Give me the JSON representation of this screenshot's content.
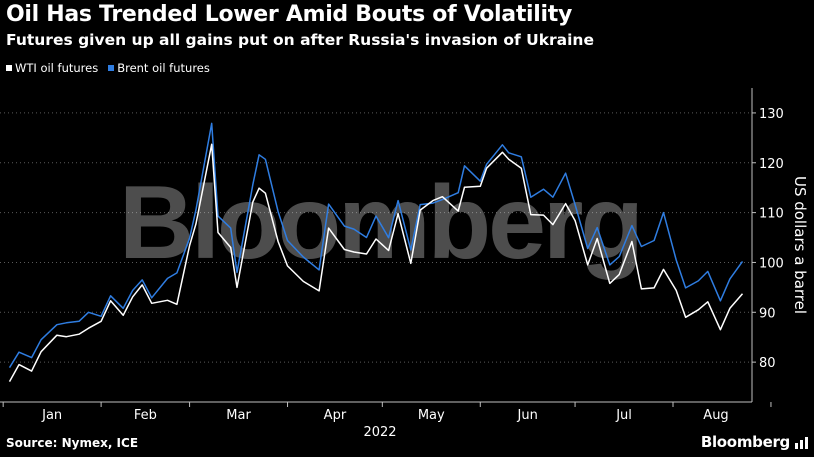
{
  "title": "Oil Has Trended Lower Amid Bouts of Volatility",
  "subtitle": "Futures given up all gains put on after Russia's invasion of Ukraine",
  "legend": [
    {
      "label": "WTI oil futures",
      "color": "#ffffff"
    },
    {
      "label": "Brent oil futures",
      "color": "#2f7de1"
    }
  ],
  "source": "Source: Nymex, ICE",
  "brand": "Bloomberg",
  "watermark": "Bloomberg",
  "chart_data": {
    "type": "line",
    "title": "Oil Has Trended Lower Amid Bouts of Volatility",
    "subtitle": "Futures given up all gains put on after Russia's invasion of Ukraine",
    "xlabel": "2022",
    "ylabel": "US dollars a barrel",
    "ylim": [
      72,
      135
    ],
    "yticks": [
      80,
      90,
      100,
      110,
      120,
      130
    ],
    "xtick_labels": [
      "Jan",
      "Feb",
      "Mar",
      "Apr",
      "May",
      "Jun",
      "Jul",
      "Aug"
    ],
    "grid": "horizontal dotted",
    "legend_position": "top-left",
    "series": [
      {
        "name": "WTI oil futures",
        "color": "#ffffff",
        "points": [
          [
            "2022-01-03",
            76.1
          ],
          [
            "2022-01-06",
            79.5
          ],
          [
            "2022-01-10",
            78.2
          ],
          [
            "2022-01-13",
            82.1
          ],
          [
            "2022-01-18",
            85.4
          ],
          [
            "2022-01-21",
            85.1
          ],
          [
            "2022-01-25",
            85.6
          ],
          [
            "2022-01-28",
            86.8
          ],
          [
            "2022-02-01",
            88.2
          ],
          [
            "2022-02-04",
            92.3
          ],
          [
            "2022-02-08",
            89.4
          ],
          [
            "2022-02-11",
            93.1
          ],
          [
            "2022-02-14",
            95.5
          ],
          [
            "2022-02-17",
            91.8
          ],
          [
            "2022-02-22",
            92.4
          ],
          [
            "2022-02-25",
            91.6
          ],
          [
            "2022-03-01",
            103.4
          ],
          [
            "2022-03-03",
            107.7
          ],
          [
            "2022-03-08",
            123.7
          ],
          [
            "2022-03-10",
            106.0
          ],
          [
            "2022-03-14",
            103.0
          ],
          [
            "2022-03-16",
            95.0
          ],
          [
            "2022-03-21",
            112.1
          ],
          [
            "2022-03-23",
            114.9
          ],
          [
            "2022-03-25",
            113.9
          ],
          [
            "2022-03-29",
            104.2
          ],
          [
            "2022-04-01",
            99.3
          ],
          [
            "2022-04-06",
            96.2
          ],
          [
            "2022-04-11",
            94.3
          ],
          [
            "2022-04-14",
            106.9
          ],
          [
            "2022-04-19",
            102.6
          ],
          [
            "2022-04-22",
            102.1
          ],
          [
            "2022-04-26",
            101.7
          ],
          [
            "2022-04-29",
            104.7
          ],
          [
            "2022-05-03",
            102.4
          ],
          [
            "2022-05-06",
            109.8
          ],
          [
            "2022-05-10",
            99.8
          ],
          [
            "2022-05-13",
            110.5
          ],
          [
            "2022-05-17",
            112.4
          ],
          [
            "2022-05-20",
            113.2
          ],
          [
            "2022-05-25",
            110.3
          ],
          [
            "2022-05-27",
            115.1
          ],
          [
            "2022-06-01",
            115.3
          ],
          [
            "2022-06-03",
            118.9
          ],
          [
            "2022-06-08",
            122.1
          ],
          [
            "2022-06-10",
            120.7
          ],
          [
            "2022-06-14",
            118.9
          ],
          [
            "2022-06-17",
            109.6
          ],
          [
            "2022-06-21",
            109.5
          ],
          [
            "2022-06-24",
            107.6
          ],
          [
            "2022-06-28",
            111.8
          ],
          [
            "2022-07-01",
            108.4
          ],
          [
            "2022-07-05",
            99.5
          ],
          [
            "2022-07-08",
            104.8
          ],
          [
            "2022-07-12",
            95.8
          ],
          [
            "2022-07-15",
            97.6
          ],
          [
            "2022-07-19",
            104.2
          ],
          [
            "2022-07-22",
            94.7
          ],
          [
            "2022-07-26",
            94.9
          ],
          [
            "2022-07-29",
            98.6
          ],
          [
            "2022-08-02",
            94.4
          ],
          [
            "2022-08-05",
            89.0
          ],
          [
            "2022-08-09",
            90.5
          ],
          [
            "2022-08-12",
            92.1
          ],
          [
            "2022-08-16",
            86.5
          ],
          [
            "2022-08-19",
            90.8
          ],
          [
            "2022-08-23",
            93.7
          ]
        ]
      },
      {
        "name": "Brent oil futures",
        "color": "#2f7de1",
        "points": [
          [
            "2022-01-03",
            78.9
          ],
          [
            "2022-01-06",
            82.0
          ],
          [
            "2022-01-10",
            80.9
          ],
          [
            "2022-01-13",
            84.5
          ],
          [
            "2022-01-18",
            87.5
          ],
          [
            "2022-01-21",
            87.9
          ],
          [
            "2022-01-25",
            88.2
          ],
          [
            "2022-01-28",
            90.0
          ],
          [
            "2022-02-01",
            89.2
          ],
          [
            "2022-02-04",
            93.3
          ],
          [
            "2022-02-08",
            90.8
          ],
          [
            "2022-02-11",
            94.4
          ],
          [
            "2022-02-14",
            96.5
          ],
          [
            "2022-02-17",
            92.9
          ],
          [
            "2022-02-22",
            96.8
          ],
          [
            "2022-02-25",
            97.9
          ],
          [
            "2022-03-01",
            104.9
          ],
          [
            "2022-03-03",
            110.5
          ],
          [
            "2022-03-08",
            127.9
          ],
          [
            "2022-03-10",
            109.3
          ],
          [
            "2022-03-14",
            106.9
          ],
          [
            "2022-03-16",
            98.0
          ],
          [
            "2022-03-21",
            115.6
          ],
          [
            "2022-03-23",
            121.6
          ],
          [
            "2022-03-25",
            120.7
          ],
          [
            "2022-03-29",
            110.2
          ],
          [
            "2022-04-01",
            104.4
          ],
          [
            "2022-04-06",
            101.1
          ],
          [
            "2022-04-11",
            98.5
          ],
          [
            "2022-04-14",
            111.7
          ],
          [
            "2022-04-19",
            107.3
          ],
          [
            "2022-04-22",
            106.7
          ],
          [
            "2022-04-26",
            105.0
          ],
          [
            "2022-04-29",
            109.3
          ],
          [
            "2022-05-03",
            104.97
          ],
          [
            "2022-05-06",
            112.4
          ],
          [
            "2022-05-10",
            102.5
          ],
          [
            "2022-05-13",
            111.6
          ],
          [
            "2022-05-17",
            111.9
          ],
          [
            "2022-05-20",
            112.6
          ],
          [
            "2022-05-25",
            114.0
          ],
          [
            "2022-05-27",
            119.4
          ],
          [
            "2022-06-01",
            116.3
          ],
          [
            "2022-06-03",
            119.7
          ],
          [
            "2022-06-08",
            123.6
          ],
          [
            "2022-06-10",
            122.0
          ],
          [
            "2022-06-14",
            121.2
          ],
          [
            "2022-06-17",
            113.1
          ],
          [
            "2022-06-21",
            114.7
          ],
          [
            "2022-06-24",
            113.1
          ],
          [
            "2022-06-28",
            117.9
          ],
          [
            "2022-07-01",
            111.6
          ],
          [
            "2022-07-05",
            102.8
          ],
          [
            "2022-07-08",
            107.0
          ],
          [
            "2022-07-12",
            99.5
          ],
          [
            "2022-07-15",
            101.2
          ],
          [
            "2022-07-19",
            107.4
          ],
          [
            "2022-07-22",
            103.2
          ],
          [
            "2022-07-26",
            104.4
          ],
          [
            "2022-07-29",
            110.0
          ],
          [
            "2022-08-02",
            100.5
          ],
          [
            "2022-08-05",
            94.9
          ],
          [
            "2022-08-09",
            96.3
          ],
          [
            "2022-08-12",
            98.2
          ],
          [
            "2022-08-16",
            92.3
          ],
          [
            "2022-08-19",
            96.7
          ],
          [
            "2022-08-23",
            100.2
          ]
        ]
      }
    ]
  }
}
